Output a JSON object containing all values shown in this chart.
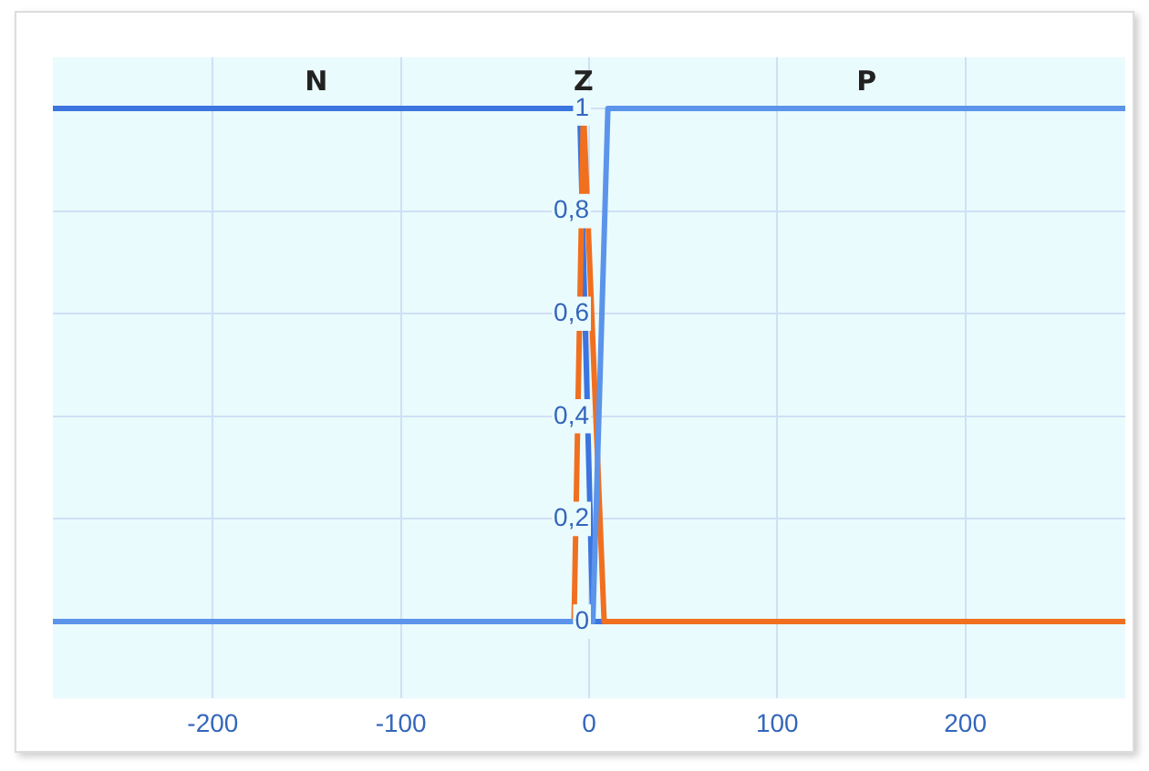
{
  "chart_data": {
    "type": "line",
    "xlim": [
      -285,
      285
    ],
    "ylim": [
      -0.15,
      1.1
    ],
    "xticks": [
      -200,
      -100,
      0,
      100,
      200
    ],
    "yticks": [
      0,
      {
        "value": 0.2,
        "label": "0,2"
      },
      {
        "value": 0.4,
        "label": "0,4"
      },
      {
        "value": 0.6,
        "label": "0,6"
      },
      {
        "value": 0.8,
        "label": "0,8"
      },
      1
    ],
    "grid": true,
    "legend": false,
    "marker": "none",
    "line_style": "solid",
    "series": [
      {
        "name": "N",
        "color": "#3c74e0",
        "x": [
          -285,
          -5,
          2,
          285
        ],
        "values": [
          1,
          1,
          0,
          0
        ]
      },
      {
        "name": "Z",
        "color": "#f07020",
        "x": [
          -285,
          -8,
          -3,
          8,
          285
        ],
        "values": [
          0,
          0,
          1,
          0,
          0
        ]
      },
      {
        "name": "P",
        "color": "#5b94ea",
        "x": [
          -285,
          2,
          10,
          285
        ],
        "values": [
          0,
          0,
          1,
          1
        ]
      }
    ]
  }
}
